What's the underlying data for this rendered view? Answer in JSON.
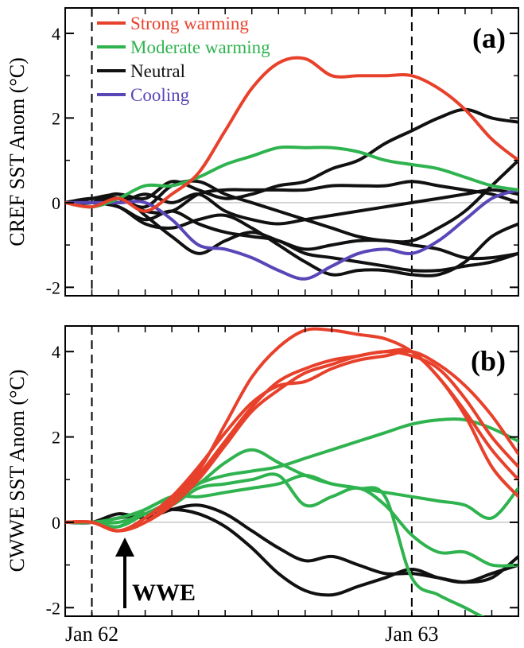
{
  "colors": {
    "strong_warming": "#e8412b",
    "moderate_warming": "#2fb34f",
    "neutral": "#111111",
    "cooling": "#5b46b8",
    "zero_line": "#c8c8c8"
  },
  "x_axis": {
    "tick_labels": [
      "Jan 62",
      "Jan 63"
    ],
    "tick_months": [
      1,
      13
    ]
  },
  "legend": {
    "placement": "top-left",
    "entries": [
      {
        "key": "strong_warming",
        "label": "Strong warming"
      },
      {
        "key": "moderate_warming",
        "label": "Moderate warming"
      },
      {
        "key": "neutral",
        "label": "Neutral"
      },
      {
        "key": "cooling",
        "label": "Cooling"
      }
    ]
  },
  "chart_data": [
    {
      "type": "line",
      "panel_label": "(a)",
      "ylabel": "CREF SST Anom (°C)",
      "xlim": [
        0,
        17
      ],
      "ylim": [
        -2.2,
        4.6
      ],
      "yticks": [
        -2,
        0,
        2,
        4
      ],
      "ytick_labels": [
        "-2",
        "0",
        "2",
        "4"
      ],
      "vlines": [
        1,
        13
      ],
      "x": [
        0,
        1,
        2,
        3,
        4,
        5,
        6,
        7,
        8,
        9,
        10,
        11,
        12,
        13,
        14,
        15,
        16,
        17
      ],
      "series": [
        {
          "group": "strong_warming",
          "values": [
            0,
            -0.1,
            0.1,
            -0.2,
            0.2,
            0.7,
            1.7,
            2.7,
            3.3,
            3.4,
            3.0,
            3.0,
            3.0,
            3.0,
            2.7,
            2.2,
            1.5,
            1.0
          ]
        },
        {
          "group": "moderate_warming",
          "values": [
            0,
            -0.1,
            0.1,
            0.4,
            0.4,
            0.6,
            0.9,
            1.1,
            1.3,
            1.3,
            1.3,
            1.2,
            1.0,
            0.9,
            0.8,
            0.6,
            0.4,
            0.3
          ]
        },
        {
          "group": "neutral",
          "values": [
            0,
            0.1,
            0.2,
            0.1,
            0.5,
            0.3,
            0.1,
            0.2,
            0.4,
            0.5,
            0.8,
            1.0,
            1.4,
            1.7,
            2.0,
            2.2,
            2.0,
            1.9
          ]
        },
        {
          "group": "neutral",
          "values": [
            0,
            0.1,
            0.1,
            -0.1,
            0.4,
            0.5,
            0.2,
            0.0,
            -0.2,
            -0.4,
            -0.6,
            -0.8,
            -0.9,
            -0.9,
            -0.6,
            -0.2,
            0.4,
            1.0
          ]
        },
        {
          "group": "neutral",
          "values": [
            0,
            0.0,
            0.1,
            -0.2,
            -0.2,
            0.2,
            0.3,
            0.3,
            0.3,
            0.3,
            0.4,
            0.4,
            0.4,
            0.5,
            0.4,
            0.3,
            0.2,
            0.0
          ]
        },
        {
          "group": "neutral",
          "values": [
            0,
            0.1,
            0.0,
            0.2,
            0.0,
            0.2,
            -0.2,
            -0.4,
            -0.5,
            -0.4,
            -0.3,
            -0.2,
            -0.1,
            0.0,
            0.1,
            0.2,
            0.3,
            0.2
          ]
        },
        {
          "group": "neutral",
          "values": [
            0,
            0.0,
            0.2,
            -0.3,
            -0.8,
            -1.2,
            -0.9,
            -0.7,
            -0.9,
            -1.1,
            -1.0,
            -0.9,
            -0.9,
            -1.0,
            -1.1,
            -1.3,
            -1.3,
            -1.2
          ]
        },
        {
          "group": "neutral",
          "values": [
            0,
            0.0,
            -0.1,
            -0.4,
            -0.2,
            -0.5,
            -0.7,
            -0.8,
            -0.9,
            -1.2,
            -1.3,
            -1.4,
            -1.5,
            -1.6,
            -1.6,
            -1.5,
            -1.4,
            -1.2
          ]
        },
        {
          "group": "neutral",
          "values": [
            0,
            0.0,
            -0.1,
            -0.5,
            -0.6,
            -0.4,
            -0.3,
            -0.6,
            -1.0,
            -1.4,
            -1.7,
            -1.6,
            -1.6,
            -1.7,
            -1.7,
            -1.4,
            -0.8,
            -0.5
          ]
        },
        {
          "group": "cooling",
          "values": [
            0,
            0.0,
            0.0,
            0.0,
            -0.4,
            -1.0,
            -1.1,
            -1.3,
            -1.6,
            -1.8,
            -1.5,
            -1.2,
            -1.1,
            -1.2,
            -0.9,
            -0.4,
            0.1,
            0.3
          ]
        }
      ]
    },
    {
      "type": "line",
      "panel_label": "(b)",
      "ylabel": "CWWE SST Anom (°C)",
      "xlim": [
        0,
        17
      ],
      "ylim": [
        -2.2,
        4.6
      ],
      "yticks": [
        -2,
        0,
        2,
        4
      ],
      "ytick_labels": [
        "-2",
        "0",
        "2",
        "4"
      ],
      "vlines": [
        1,
        13
      ],
      "annotation": {
        "text": "WWE",
        "x": 2.5,
        "y": -0.3
      },
      "x": [
        0,
        1,
        2,
        3,
        4,
        5,
        6,
        7,
        8,
        9,
        10,
        11,
        12,
        13,
        14,
        15,
        16,
        17
      ],
      "series": [
        {
          "group": "strong_warming",
          "values": [
            0,
            0.0,
            -0.2,
            0.1,
            0.6,
            1.2,
            2.3,
            3.4,
            4.1,
            4.5,
            4.5,
            4.4,
            4.3,
            4.0,
            3.4,
            2.5,
            1.3,
            0.6
          ]
        },
        {
          "group": "strong_warming",
          "values": [
            0,
            0.0,
            -0.2,
            0.0,
            0.4,
            1.0,
            1.8,
            2.6,
            3.1,
            3.5,
            3.7,
            3.9,
            4.0,
            4.0,
            3.4,
            2.6,
            1.7,
            1.0
          ]
        },
        {
          "group": "strong_warming",
          "values": [
            0,
            0.0,
            -0.2,
            0.0,
            0.5,
            1.1,
            1.9,
            2.7,
            3.3,
            3.6,
            3.8,
            3.9,
            4.0,
            3.9,
            3.6,
            2.9,
            2.0,
            1.3
          ]
        },
        {
          "group": "strong_warming",
          "values": [
            0,
            0.0,
            -0.2,
            0.1,
            0.6,
            1.3,
            2.1,
            2.8,
            3.2,
            3.3,
            3.6,
            3.8,
            3.9,
            4.0,
            3.7,
            3.2,
            2.5,
            1.6
          ]
        },
        {
          "group": "moderate_warming",
          "values": [
            0,
            0.0,
            -0.1,
            0.2,
            0.5,
            0.9,
            1.1,
            1.2,
            1.3,
            1.5,
            1.7,
            1.9,
            2.1,
            2.3,
            2.4,
            2.4,
            2.2,
            1.9
          ]
        },
        {
          "group": "moderate_warming",
          "values": [
            0,
            0.0,
            -0.1,
            0.3,
            0.6,
            0.9,
            1.4,
            1.7,
            1.4,
            1.1,
            0.9,
            0.8,
            0.7,
            0.6,
            0.5,
            0.4,
            0.1,
            0.8
          ]
        },
        {
          "group": "moderate_warming",
          "values": [
            0,
            0.0,
            0.0,
            0.2,
            0.4,
            0.8,
            0.9,
            1.0,
            1.1,
            0.4,
            0.6,
            0.8,
            0.4,
            -0.3,
            -0.7,
            -0.7,
            -1.0,
            -1.0
          ]
        },
        {
          "group": "moderate_warming",
          "values": [
            0,
            0.0,
            0.1,
            0.3,
            0.6,
            0.6,
            0.7,
            0.8,
            0.9,
            1.1,
            0.9,
            0.8,
            0.6,
            -1.3,
            -1.7,
            -2.0,
            -2.3,
            -2.3
          ]
        },
        {
          "group": "neutral",
          "values": [
            0,
            0.0,
            0.2,
            0.1,
            0.3,
            0.4,
            0.2,
            -0.2,
            -0.6,
            -0.9,
            -0.8,
            -1.0,
            -1.2,
            -1.2,
            -1.3,
            -1.4,
            -1.3,
            -0.8
          ]
        },
        {
          "group": "neutral",
          "values": [
            0,
            0.0,
            0.1,
            0.2,
            0.3,
            0.2,
            -0.1,
            -0.6,
            -1.2,
            -1.6,
            -1.7,
            -1.5,
            -1.3,
            -1.1,
            -1.3,
            -1.4,
            -1.2,
            -1.0
          ]
        }
      ]
    }
  ]
}
